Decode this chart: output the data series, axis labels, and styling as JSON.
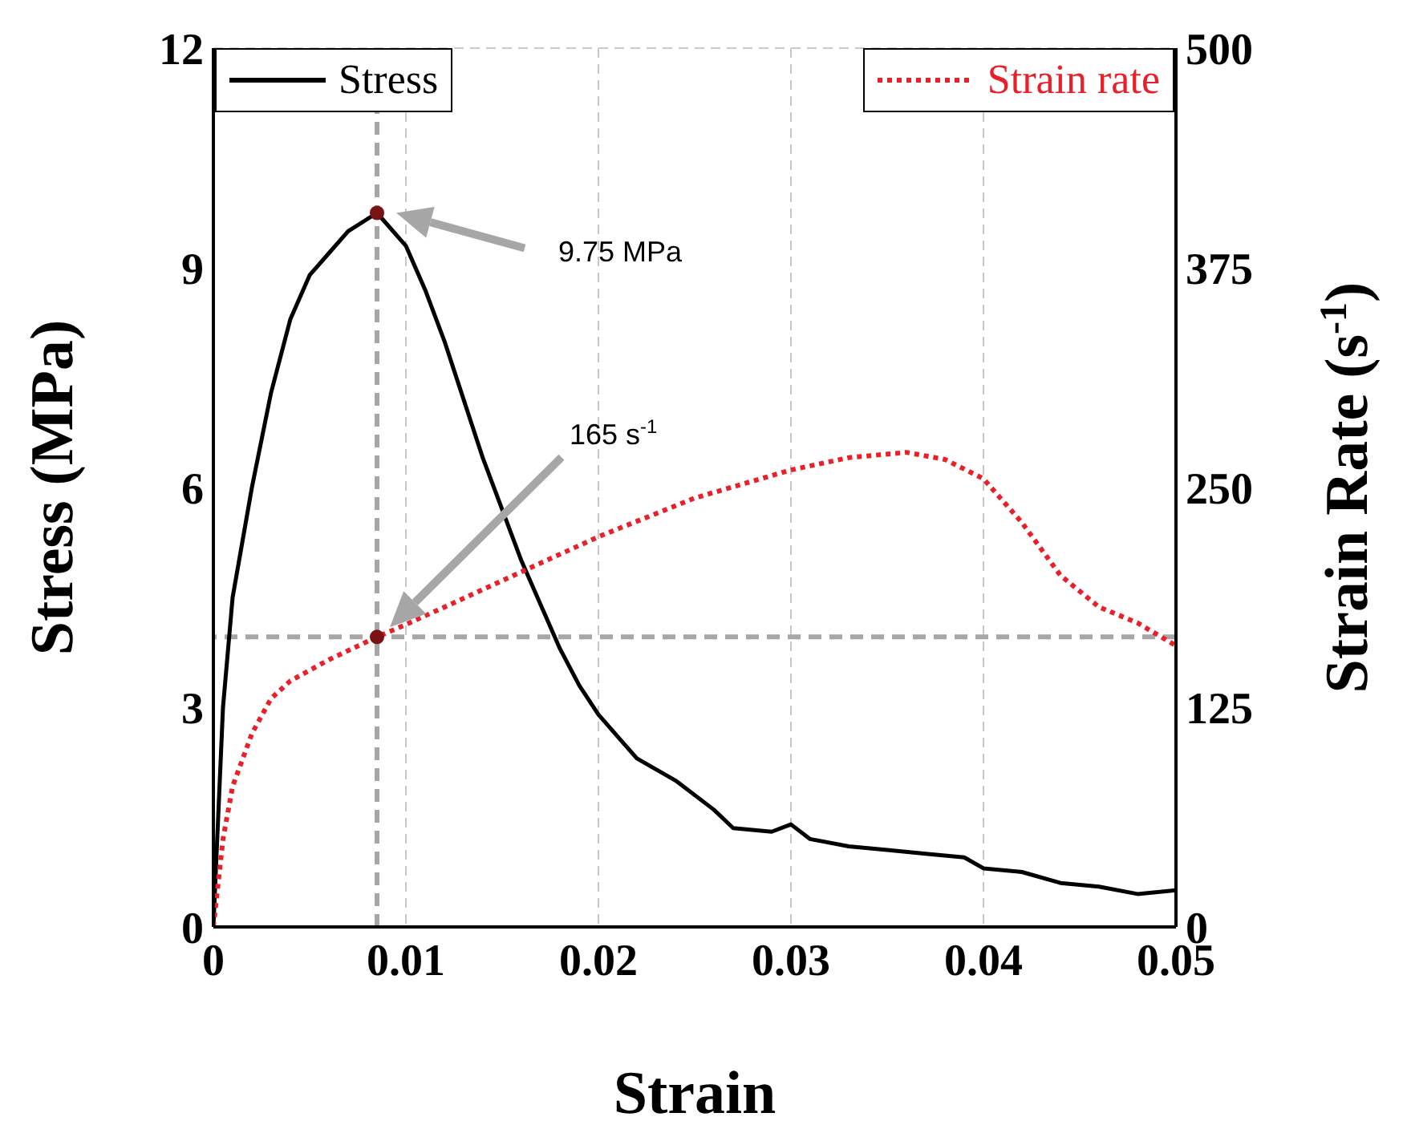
{
  "chart_data": {
    "type": "line",
    "xlabel": "Strain",
    "ylabel": "Stress (MPa)",
    "y2label": "Strain Rate (s$^{-1}$)",
    "xlim": [
      0,
      0.05
    ],
    "xticks": [
      0,
      0.01,
      0.02,
      0.03,
      0.04,
      0.05
    ],
    "ylim": [
      0,
      12
    ],
    "yticks": [
      0,
      3,
      6,
      9,
      12
    ],
    "y2lim": [
      0,
      500
    ],
    "y2ticks": [
      0,
      125,
      250,
      375,
      500
    ],
    "grid": true,
    "legend": "top",
    "annotations": [
      "9.75 MPa",
      "165 s$^{-1}$"
    ],
    "ref_lines": [
      {
        "axis": "x",
        "value": 0.0085,
        "color": "#a6a6a6",
        "line_style": "dashed"
      },
      {
        "axis": "y2",
        "value": 165,
        "color": "#a6a6a6",
        "line_style": "dashed"
      }
    ],
    "series": [
      {
        "name": "Stress",
        "color": "#000000",
        "line_style": "solid",
        "x": [
          0,
          0.0005,
          0.001,
          0.002,
          0.003,
          0.004,
          0.005,
          0.006,
          0.007,
          0.0085,
          0.01,
          0.011,
          0.012,
          0.013,
          0.014,
          0.015,
          0.016,
          0.017,
          0.018,
          0.019,
          0.02,
          0.021,
          0.022,
          0.024,
          0.026,
          0.027,
          0.029,
          0.03,
          0.031,
          0.033,
          0.035,
          0.037,
          0.039,
          0.04,
          0.042,
          0.044,
          0.046,
          0.048,
          0.05
        ],
        "values": [
          0,
          3.0,
          4.5,
          6.0,
          7.3,
          8.3,
          8.9,
          9.2,
          9.5,
          9.75,
          9.3,
          8.7,
          8.0,
          7.2,
          6.4,
          5.7,
          5.0,
          4.4,
          3.8,
          3.3,
          2.9,
          2.6,
          2.3,
          2.0,
          1.6,
          1.35,
          1.3,
          1.4,
          1.2,
          1.1,
          1.05,
          1.0,
          0.95,
          0.8,
          0.75,
          0.6,
          0.55,
          0.45,
          0.5
        ]
      },
      {
        "name": "Strain rate",
        "color": "#e8202a",
        "line_style": "dotted",
        "axis": "y2",
        "x": [
          0,
          0.0005,
          0.001,
          0.002,
          0.003,
          0.004,
          0.006,
          0.0085,
          0.01,
          0.015,
          0.02,
          0.025,
          0.03,
          0.033,
          0.036,
          0.038,
          0.04,
          0.042,
          0.044,
          0.046,
          0.048,
          0.05
        ],
        "values": [
          0,
          50,
          80,
          110,
          130,
          140,
          152,
          165,
          172,
          197,
          222,
          244,
          260,
          267,
          270,
          266,
          255,
          230,
          200,
          182,
          173,
          160
        ]
      },
      {
        "type": "scatter",
        "color": "#7a1414",
        "marker": "circle",
        "x": [
          0.0085
        ],
        "values": [
          9.75
        ]
      },
      {
        "type": "scatter",
        "color": "#7a1414",
        "marker": "circle",
        "axis": "y2",
        "x": [
          0.0085
        ],
        "values": [
          165
        ]
      }
    ]
  }
}
